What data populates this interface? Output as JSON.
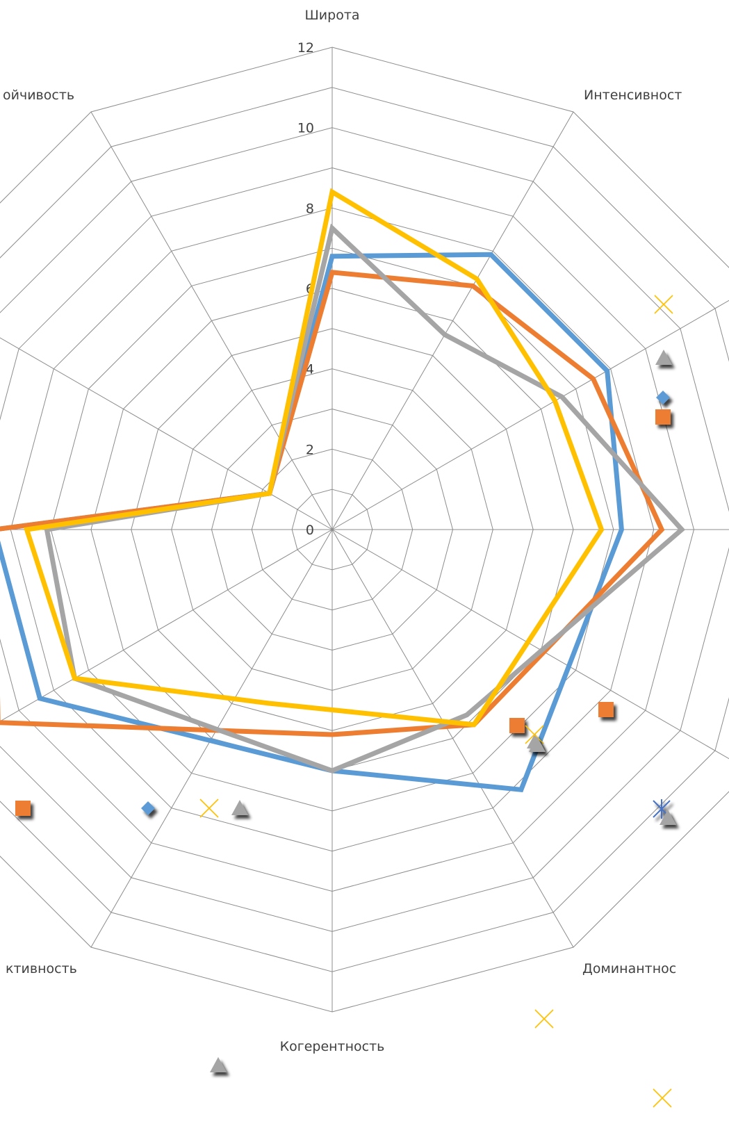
{
  "chart_data": {
    "type": "radar",
    "axis_max": 12,
    "tick_labels": [
      "0",
      "2",
      "4",
      "6",
      "8",
      "10",
      "12"
    ],
    "visible_axis_labels": [
      {
        "angle": 0,
        "text": "Широта"
      },
      {
        "angle": 45,
        "text": "Интенсивност"
      },
      {
        "angle": 135,
        "text": "Доминантнос"
      },
      {
        "angle": 180,
        "text": "Когерентность"
      },
      {
        "angle": 225,
        "text": "ктивность"
      },
      {
        "angle": 315,
        "text": "ойчивость"
      }
    ],
    "grid": true,
    "legend": "none",
    "series": [
      {
        "color": "#5b9bd5",
        "values": [
          [
            0,
            6.8
          ],
          [
            30,
            7.9
          ],
          [
            60,
            7.9
          ],
          [
            90,
            7.2
          ],
          [
            144,
            8.0
          ],
          [
            180,
            6.0
          ],
          [
            240,
            8.4
          ],
          [
            270,
            8.4
          ],
          [
            300,
            1.8
          ]
        ]
      },
      {
        "color": "#ed7d31",
        "values": [
          [
            0,
            6.4
          ],
          [
            30,
            7.0
          ],
          [
            60,
            7.5
          ],
          [
            90,
            8.2
          ],
          [
            144,
            6.0
          ],
          [
            180,
            5.1
          ],
          [
            240,
            9.6
          ],
          [
            270,
            8.4
          ],
          [
            300,
            1.8
          ]
        ]
      },
      {
        "color": "#a5a5a5",
        "values": [
          [
            0,
            7.5
          ],
          [
            30,
            5.6
          ],
          [
            60,
            6.6
          ],
          [
            90,
            8.7
          ],
          [
            144,
            5.7
          ],
          [
            180,
            6.0
          ],
          [
            240,
            7.4
          ],
          [
            270,
            7.1
          ],
          [
            300,
            1.8
          ]
        ]
      },
      {
        "color": "#ffc000",
        "values": [
          [
            0,
            8.4
          ],
          [
            30,
            7.2
          ],
          [
            60,
            6.4
          ],
          [
            90,
            6.7
          ],
          [
            144,
            6.0
          ],
          [
            200,
            4.6
          ],
          [
            240,
            7.4
          ],
          [
            270,
            7.6
          ],
          [
            300,
            1.8
          ]
        ]
      }
    ],
    "stray_markers": [
      {
        "shape": "x",
        "color": "#ffc000"
      },
      {
        "shape": "triangle",
        "color": "#a5a5a5"
      },
      {
        "shape": "diamond",
        "color": "#5b9bd5"
      },
      {
        "shape": "square",
        "color": "#ed7d31"
      },
      {
        "shape": "square",
        "color": "#ed7d31"
      },
      {
        "shape": "triangle",
        "color": "#a5a5a5"
      },
      {
        "shape": "square",
        "color": "#ed7d31"
      },
      {
        "shape": "x",
        "color": "#ffc000"
      },
      {
        "shape": "triangle",
        "color": "#a5a5a5"
      },
      {
        "shape": "asterisk",
        "color": "#4472c4"
      },
      {
        "shape": "triangle",
        "color": "#a5a5a5"
      },
      {
        "shape": "square",
        "color": "#ed7d31"
      },
      {
        "shape": "diamond",
        "color": "#5b9bd5"
      },
      {
        "shape": "x",
        "color": "#ffc000"
      },
      {
        "shape": "triangle",
        "color": "#a5a5a5"
      },
      {
        "shape": "x",
        "color": "#ffc000"
      },
      {
        "shape": "triangle",
        "color": "#a5a5a5"
      },
      {
        "shape": "x",
        "color": "#ffc000"
      }
    ]
  }
}
